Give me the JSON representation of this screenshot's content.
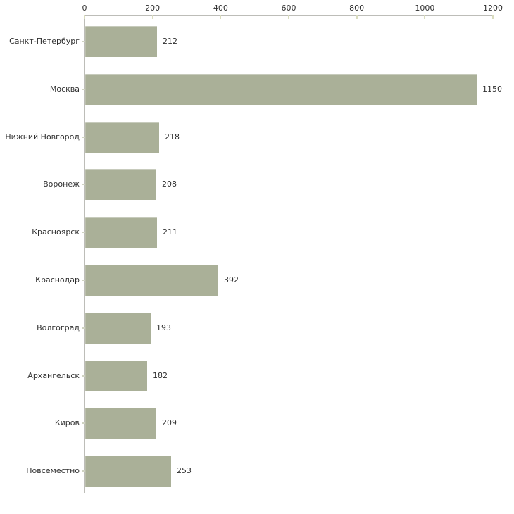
{
  "chart_data": {
    "type": "bar",
    "orientation": "horizontal",
    "title": "",
    "categories": [
      "Санкт-Петербург",
      "Москва",
      "Нижний Новгород",
      "Воронеж",
      "Красноярск",
      "Краснодар",
      "Волгоград",
      "Архангельск",
      "Киров",
      "Повсеместно"
    ],
    "values": [
      212,
      1150,
      218,
      208,
      211,
      392,
      193,
      182,
      209,
      253
    ],
    "x_ticks": [
      0,
      200,
      400,
      600,
      800,
      1000,
      1200
    ],
    "xlim": [
      0,
      1200
    ],
    "xlabel": "",
    "ylabel": "",
    "grid": false,
    "legend": false,
    "axis_position": "top",
    "colors": {
      "bar": "#aab098",
      "axis": "#bdbdb8",
      "tick": "#d9dcbe",
      "category_tick": "#cfd2c2",
      "text": "#2f2f2f",
      "background": "#ffffff"
    }
  }
}
